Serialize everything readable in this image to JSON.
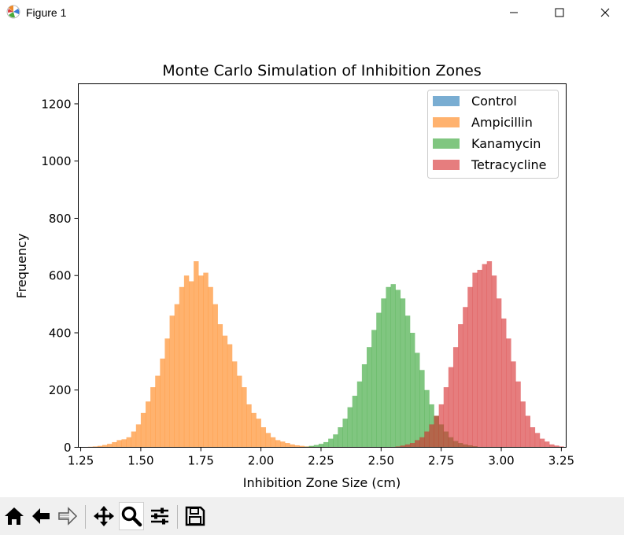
{
  "window": {
    "title": "Figure 1",
    "app_icon": "matplotlib-logo-icon",
    "controls": [
      "minimize-icon",
      "maximize-icon",
      "close-icon"
    ]
  },
  "toolbar": {
    "buttons": [
      {
        "icon": "home-icon",
        "name": "home"
      },
      {
        "icon": "back-arrow-icon",
        "name": "back"
      },
      {
        "icon": "forward-arrow-icon",
        "name": "forward"
      },
      {
        "icon": "pan-icon",
        "name": "pan"
      },
      {
        "icon": "zoom-icon",
        "name": "zoom",
        "active": true
      },
      {
        "icon": "configure-subplots-icon",
        "name": "configure"
      },
      {
        "icon": "save-icon",
        "name": "save"
      }
    ]
  },
  "chart_data": {
    "type": "bar",
    "title": "Monte Carlo Simulation of Inhibition Zones",
    "xlabel": "Inhibition Zone Size (cm)",
    "ylabel": "Frequency",
    "xlim": [
      1.24,
      3.27
    ],
    "ylim": [
      0,
      1270
    ],
    "xticks": [
      "1.25",
      "1.50",
      "1.75",
      "2.00",
      "2.25",
      "2.50",
      "2.75",
      "3.00",
      "3.25"
    ],
    "yticks": [
      "0",
      "200",
      "400",
      "600",
      "800",
      "1000",
      "1200"
    ],
    "grid": false,
    "legend_position": "top-right",
    "bin_width": 0.02,
    "series": [
      {
        "name": "Control",
        "color": "#1f77b4",
        "alpha": 0.6,
        "start": 0,
        "values": []
      },
      {
        "name": "Ampicillin",
        "color": "#ff7f0e",
        "alpha": 0.6,
        "start": 1.28,
        "values": [
          2,
          3,
          5,
          8,
          12,
          18,
          25,
          28,
          35,
          55,
          80,
          120,
          160,
          210,
          250,
          310,
          380,
          460,
          500,
          560,
          600,
          580,
          650,
          600,
          610,
          560,
          500,
          430,
          390,
          360,
          300,
          250,
          210,
          150,
          120,
          100,
          70,
          50,
          35,
          25,
          20,
          15,
          10,
          7,
          5,
          3,
          2
        ]
      },
      {
        "name": "Kanamycin",
        "color": "#2ca02c",
        "alpha": 0.6,
        "start": 2.18,
        "values": [
          2,
          5,
          8,
          12,
          18,
          30,
          45,
          70,
          100,
          140,
          180,
          230,
          290,
          350,
          410,
          470,
          520,
          560,
          570,
          550,
          520,
          460,
          400,
          330,
          270,
          200,
          150,
          110,
          80,
          55,
          35,
          22,
          15,
          10,
          7,
          4
        ]
      },
      {
        "name": "Tetracycline",
        "color": "#d62728",
        "alpha": 0.6,
        "start": 2.56,
        "values": [
          3,
          6,
          10,
          15,
          25,
          35,
          55,
          80,
          110,
          150,
          210,
          280,
          350,
          430,
          490,
          560,
          610,
          620,
          640,
          650,
          600,
          520,
          450,
          380,
          300,
          230,
          160,
          110,
          70,
          50,
          30,
          20,
          10,
          6,
          3
        ]
      }
    ]
  }
}
